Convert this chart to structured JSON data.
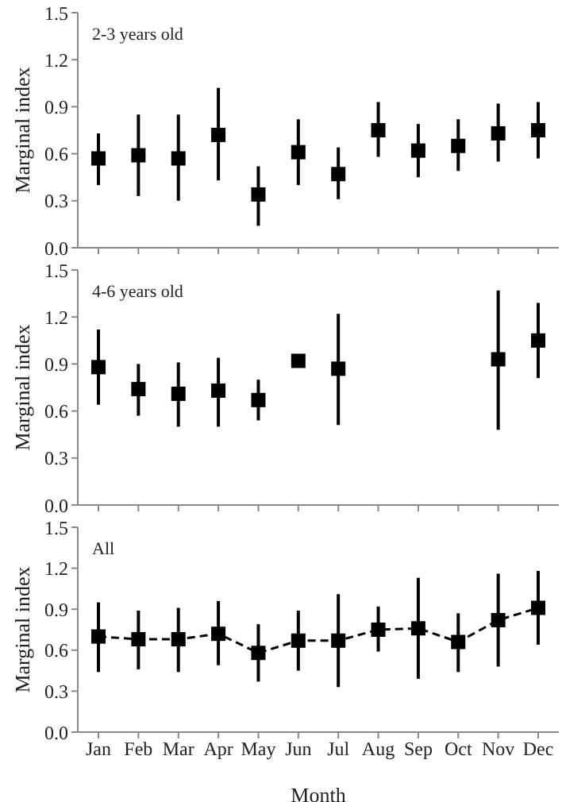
{
  "chart_data": [
    {
      "type": "scatter",
      "ylabel": "Marginal index",
      "annotations": [
        "2-3 years old"
      ],
      "categories": [
        null,
        null,
        null,
        null,
        null,
        null,
        null,
        null,
        null,
        null,
        null,
        null
      ],
      "tick_labels": "y",
      "marker": "square",
      "grid": false,
      "legend": false,
      "series": [
        {
          "color": "#000000",
          "values": [
            0.57,
            0.59,
            0.57,
            0.72,
            0.34,
            0.61,
            0.47,
            0.75,
            0.62,
            0.65,
            0.73,
            0.75
          ],
          "errors": [
            [
              0.4,
              0.73
            ],
            [
              0.33,
              0.85
            ],
            [
              0.3,
              0.85
            ],
            [
              0.43,
              1.02
            ],
            [
              0.14,
              0.52
            ],
            [
              0.4,
              0.82
            ],
            [
              0.31,
              0.64
            ],
            [
              0.58,
              0.93
            ],
            [
              0.45,
              0.79
            ],
            [
              0.49,
              0.82
            ],
            [
              0.55,
              0.92
            ],
            [
              0.57,
              0.93
            ]
          ]
        }
      ],
      "ylim": [
        0,
        1.5
      ],
      "yticks": [
        {
          "value": 0,
          "label": "0.0"
        },
        {
          "value": 0.3,
          "label": "0.3"
        },
        {
          "value": 0.6,
          "label": "0.6"
        },
        {
          "value": 0.9,
          "label": "0.9"
        },
        {
          "value": 1.2,
          "label": "1.2"
        },
        {
          "value": 1.5,
          "label": "1.5"
        }
      ]
    },
    {
      "type": "scatter",
      "ylabel": "Marginal index",
      "annotations": [
        "4-6 years old"
      ],
      "categories": [
        null,
        null,
        null,
        null,
        null,
        null,
        null,
        null,
        null,
        null,
        null,
        null
      ],
      "tick_labels": "y",
      "marker": "square",
      "grid": false,
      "legend": false,
      "series": [
        {
          "color": "#000000",
          "values": [
            0.88,
            0.74,
            0.71,
            0.73,
            0.67,
            0.92,
            0.87,
            null,
            null,
            null,
            0.93,
            1.05
          ],
          "errors": [
            [
              0.64,
              1.12
            ],
            [
              0.57,
              0.9
            ],
            [
              0.5,
              0.91
            ],
            [
              0.5,
              0.94
            ],
            [
              0.54,
              0.8
            ],
            null,
            [
              0.51,
              1.22
            ],
            null,
            null,
            null,
            [
              0.48,
              1.37
            ],
            [
              0.81,
              1.29
            ]
          ]
        }
      ],
      "ylim": [
        0,
        1.5
      ],
      "yticks": [
        {
          "value": 0,
          "label": "0.0"
        },
        {
          "value": 0.3,
          "label": "0.3"
        },
        {
          "value": 0.6,
          "label": "0.6"
        },
        {
          "value": 0.9,
          "label": "0.9"
        },
        {
          "value": 1.2,
          "label": "1.2"
        },
        {
          "value": 1.5,
          "label": "1.5"
        }
      ]
    },
    {
      "type": "line",
      "xlabel": "Month",
      "ylabel": "Marginal index",
      "annotations": [
        "All"
      ],
      "categories": [
        "Jan",
        "Feb",
        "Mar",
        "Apr",
        "May",
        "Jun",
        "Jul",
        "Aug",
        "Sep",
        "Oct",
        "Nov",
        "Dec"
      ],
      "marker": "square",
      "line_style": "dashed",
      "grid": false,
      "legend": false,
      "series": [
        {
          "color": "#000000",
          "values": [
            0.7,
            0.68,
            0.68,
            0.72,
            0.58,
            0.67,
            0.67,
            0.75,
            0.76,
            0.66,
            0.82,
            0.91
          ],
          "errors": [
            [
              0.44,
              0.95
            ],
            [
              0.46,
              0.89
            ],
            [
              0.44,
              0.91
            ],
            [
              0.49,
              0.96
            ],
            [
              0.37,
              0.79
            ],
            [
              0.45,
              0.89
            ],
            [
              0.33,
              1.01
            ],
            [
              0.59,
              0.92
            ],
            [
              0.39,
              1.13
            ],
            [
              0.44,
              0.87
            ],
            [
              0.48,
              1.16
            ],
            [
              0.64,
              1.18
            ]
          ]
        }
      ],
      "ylim": [
        0,
        1.5
      ],
      "yticks": [
        {
          "value": 0,
          "label": "0.0"
        },
        {
          "value": 0.3,
          "label": "0.3"
        },
        {
          "value": 0.6,
          "label": "0.6"
        },
        {
          "value": 0.9,
          "label": "0.9"
        },
        {
          "value": 1.2,
          "label": "1.2"
        },
        {
          "value": 1.5,
          "label": "1.5"
        }
      ]
    }
  ]
}
